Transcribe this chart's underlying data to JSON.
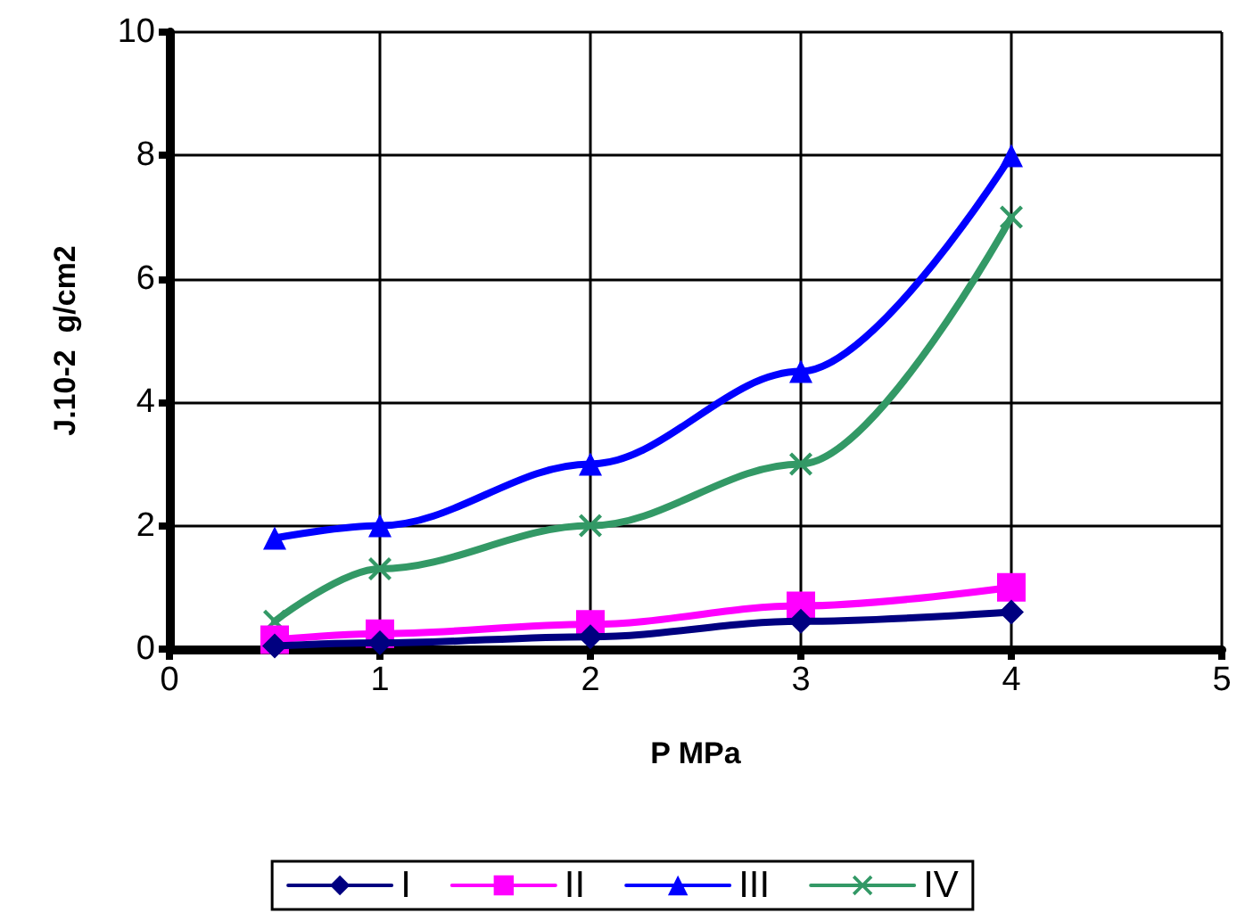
{
  "chart_data": {
    "type": "line",
    "xlabel": "P MPa",
    "ylabel": "J.10-2  g/cm2",
    "x": [
      0.5,
      1,
      2,
      3,
      4
    ],
    "series": [
      {
        "name": "I",
        "color": "#000080",
        "marker": "diamond",
        "values": [
          0.05,
          0.1,
          0.2,
          0.45,
          0.6
        ]
      },
      {
        "name": "II",
        "color": "#ff00ff",
        "marker": "square",
        "values": [
          0.15,
          0.25,
          0.4,
          0.7,
          1.0
        ]
      },
      {
        "name": "III",
        "color": "#0000ff",
        "marker": "triangle",
        "values": [
          1.8,
          2.0,
          3.0,
          4.5,
          8.0
        ]
      },
      {
        "name": "IV",
        "color": "#339966",
        "marker": "cross",
        "values": [
          0.45,
          1.3,
          2.0,
          3.0,
          7.0
        ]
      }
    ],
    "xlim": [
      0,
      5
    ],
    "xticks": [
      0,
      1,
      2,
      3,
      4,
      5
    ],
    "ylim": [
      0,
      10
    ],
    "yticks": [
      0,
      2,
      4,
      6,
      8,
      10
    ],
    "grid": true,
    "legend": "bottom",
    "line_style": "solid"
  }
}
